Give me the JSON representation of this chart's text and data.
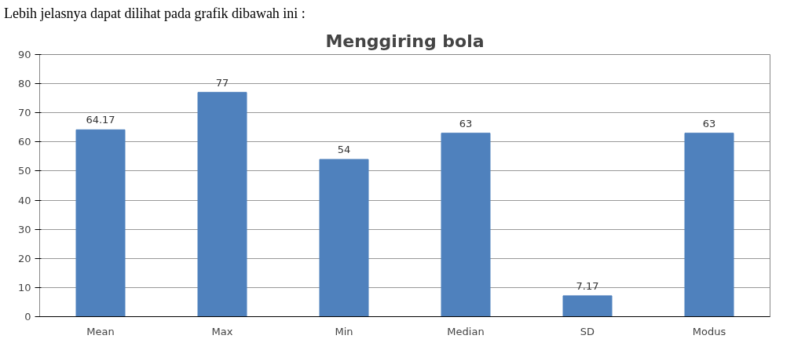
{
  "chart_data": {
    "type": "bar",
    "title": "Menggiring bola",
    "annotations": [
      "Lebih jelasnya dapat dilihat pada grafik dibawah ini :"
    ],
    "categories": [
      "Mean",
      "Max",
      "Min",
      "Median",
      "SD",
      "Modus"
    ],
    "values": [
      64.17,
      77,
      54,
      63,
      7.17,
      63
    ],
    "color": "#4f81bd",
    "ylim": [
      0,
      90
    ],
    "yticks": [
      0,
      10,
      20,
      30,
      40,
      50,
      60,
      70,
      80,
      90
    ],
    "grid": "y",
    "data_labels": true
  }
}
